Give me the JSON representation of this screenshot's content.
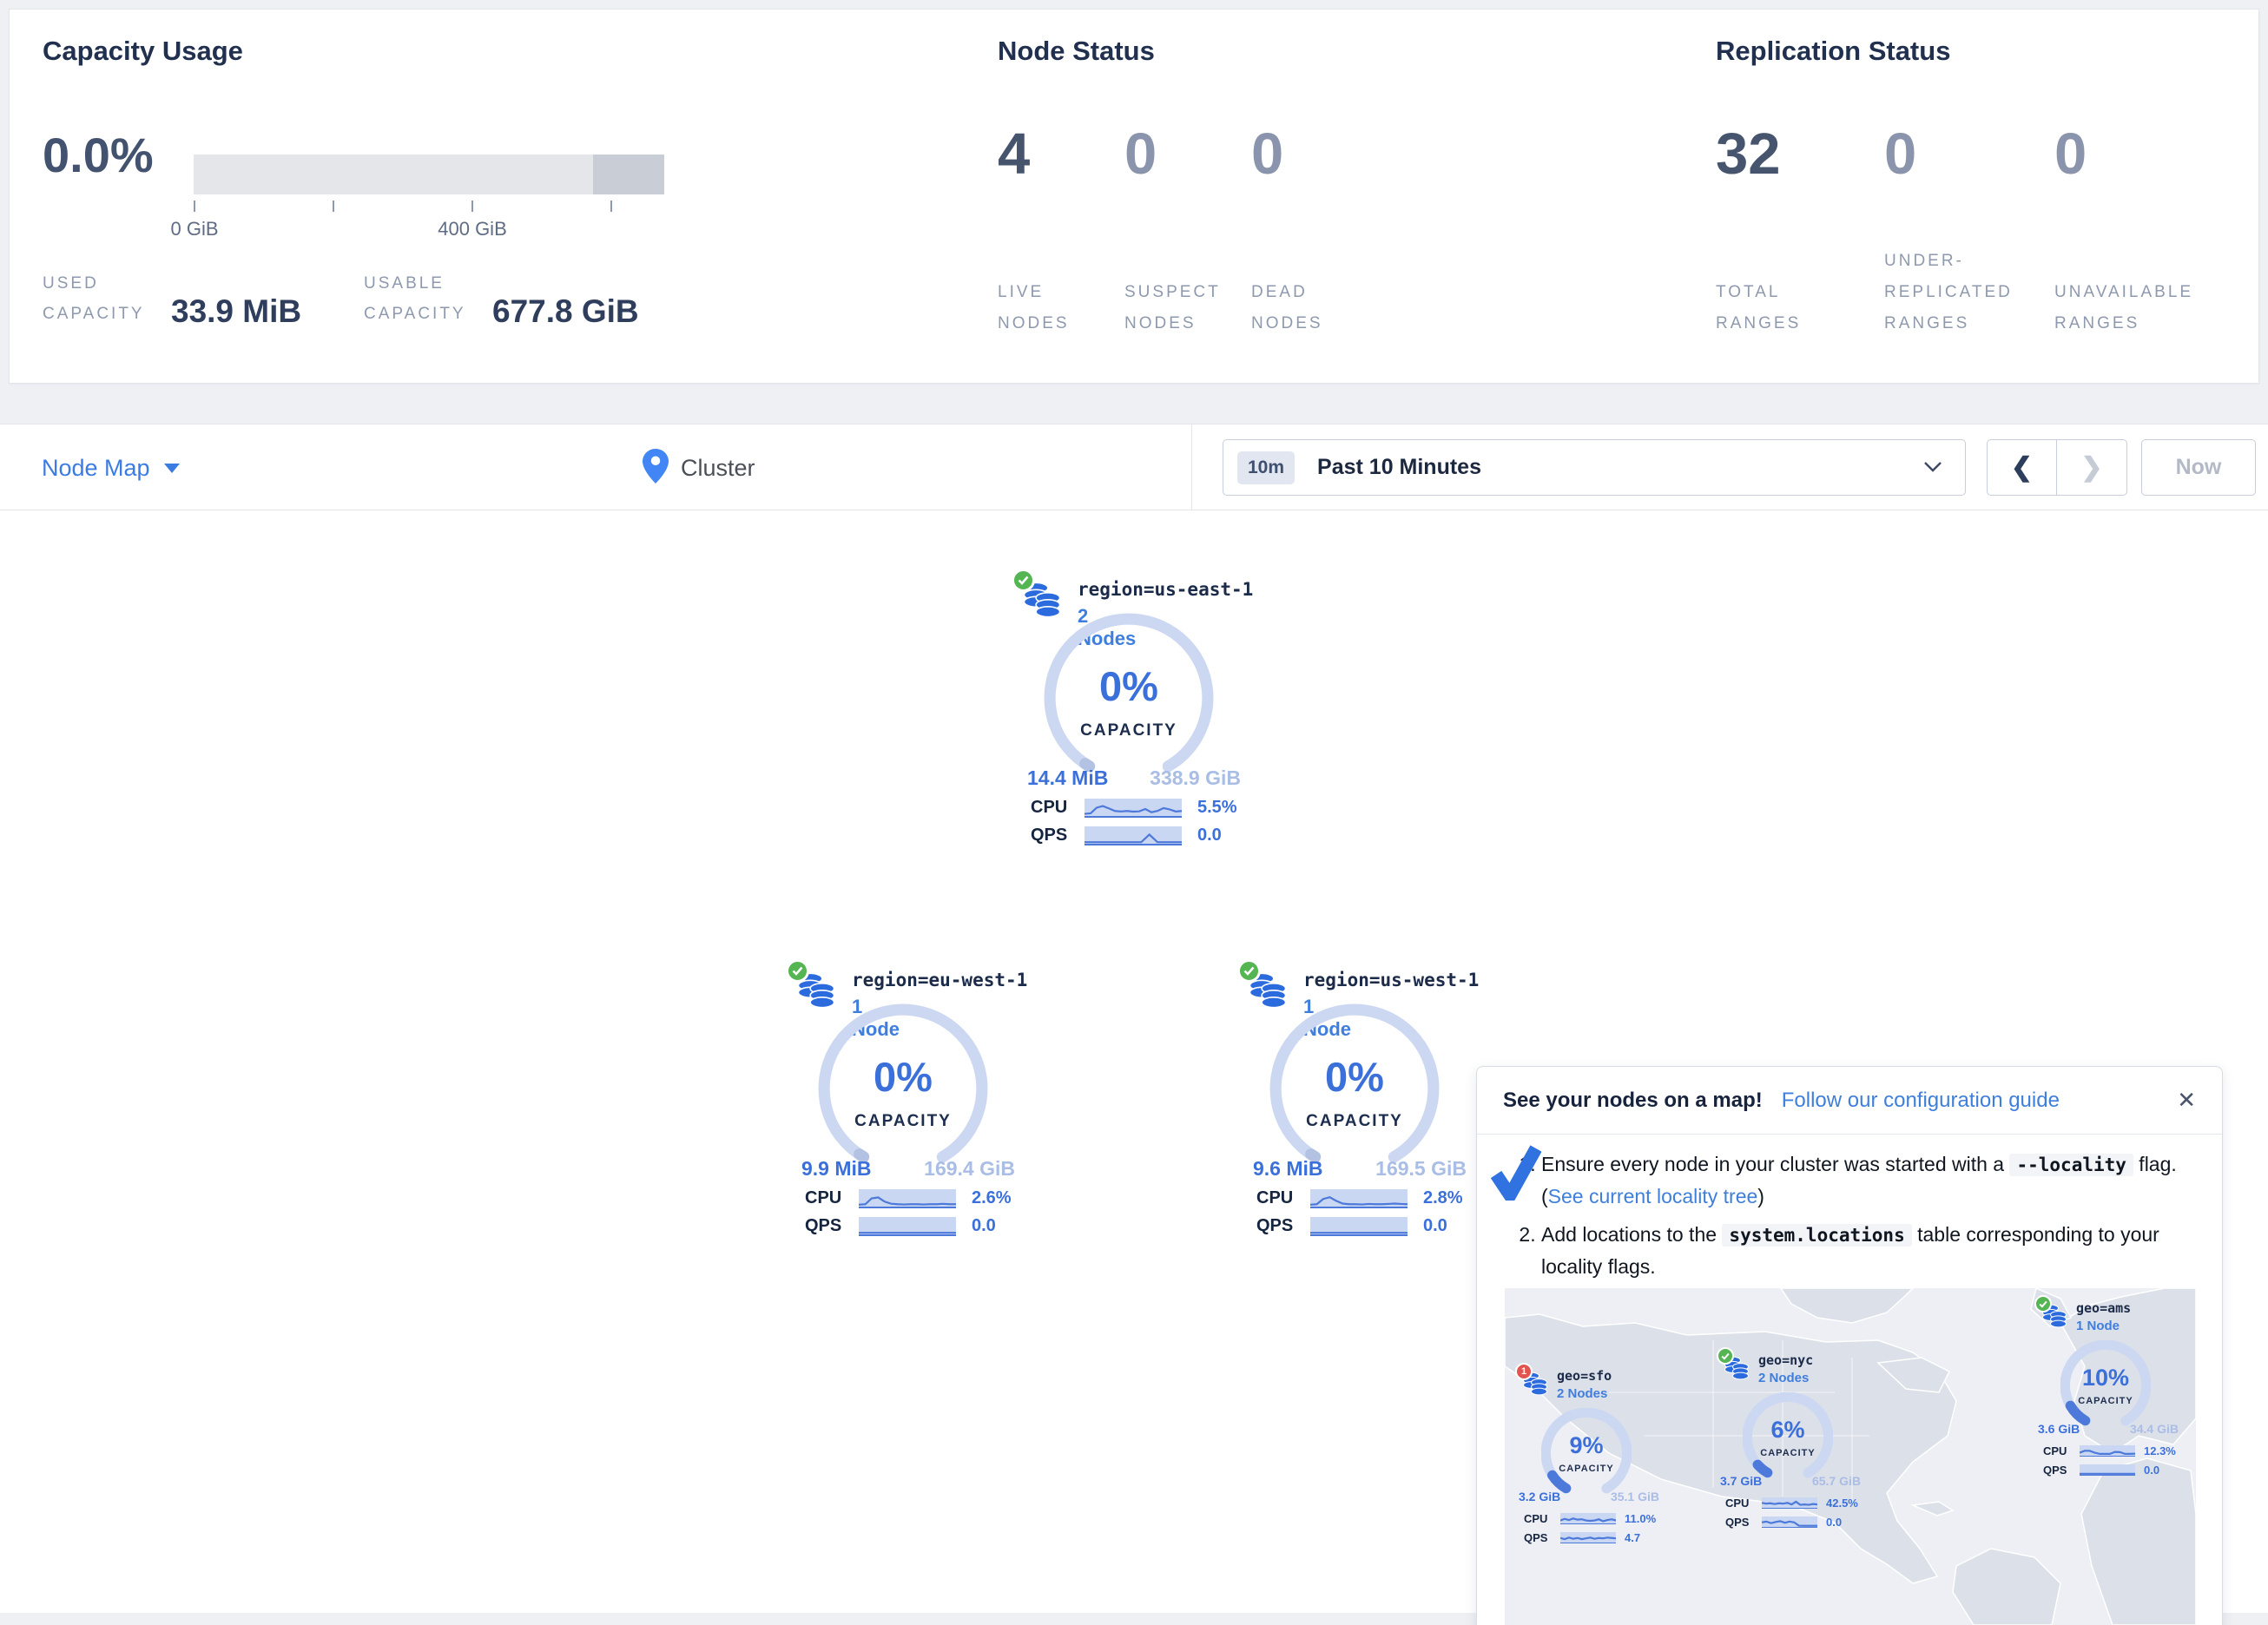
{
  "colors": {
    "accent_blue": "#3b7ce2",
    "node_blue": "#2b6bdd",
    "gauge_track": "#ccd8f2",
    "gauge_progress": "#4d79da",
    "ok_green": "#54b552",
    "warn_red": "#e25450",
    "dark_text": "#20304e",
    "muted_label": "#8e99ae"
  },
  "capacity_usage": {
    "title": "Capacity Usage",
    "percent": "0.0%",
    "tick_labels": [
      "0 GiB",
      "400 GiB"
    ],
    "used_label": "USED CAPACITY",
    "used_value": "33.9 MiB",
    "usable_label": "USABLE CAPACITY",
    "usable_value": "677.8 GiB"
  },
  "node_status": {
    "title": "Node Status",
    "stats": [
      {
        "value": "4",
        "label": "LIVE NODES"
      },
      {
        "value": "0",
        "label": "SUSPECT NODES"
      },
      {
        "value": "0",
        "label": "DEAD NODES"
      }
    ]
  },
  "replication_status": {
    "title": "Replication Status",
    "stats": [
      {
        "value": "32",
        "label": "TOTAL RANGES"
      },
      {
        "value": "0",
        "label": "UNDER-REPLICATED RANGES"
      },
      {
        "value": "0",
        "label": "UNAVAILABLE RANGES"
      }
    ]
  },
  "toolbar": {
    "view_selector": "Node Map",
    "breadcrumb": "Cluster",
    "time_badge": "10m",
    "time_label": "Past 10 Minutes",
    "prev_label": "❮",
    "next_label": "❯",
    "now_label": "Now"
  },
  "nodes": [
    {
      "locality": "region=us-east-1",
      "nodes_label": "2 Nodes",
      "percent": "0%",
      "percent_value": 0,
      "capacity_label": "CAPACITY",
      "used": "14.4 MiB",
      "total": "338.9 GiB",
      "cpu_label": "CPU",
      "cpu_value": "5.5%",
      "qps_label": "QPS",
      "qps_value": "0.0",
      "cpu_spark": [
        0.08,
        0.12,
        0.55,
        0.68,
        0.5,
        0.3,
        0.26,
        0.3,
        0.25,
        0.27,
        0.45,
        0.2,
        0.3,
        0.52,
        0.42,
        0.26,
        0.3
      ],
      "qps_spark": [
        0.04,
        0.04,
        0.04,
        0.04,
        0.04,
        0.04,
        0.04,
        0.04,
        0.62,
        0.04,
        0.04,
        0.04,
        0.04
      ]
    },
    {
      "locality": "region=eu-west-1",
      "nodes_label": "1 Node",
      "percent": "0%",
      "percent_value": 0,
      "capacity_label": "CAPACITY",
      "used": "9.9 MiB",
      "total": "169.4 GiB",
      "cpu_label": "CPU",
      "cpu_value": "2.6%",
      "qps_label": "QPS",
      "qps_value": "0.0",
      "cpu_spark": [
        0.06,
        0.1,
        0.55,
        0.62,
        0.3,
        0.14,
        0.1,
        0.08,
        0.1,
        0.1,
        0.08,
        0.1,
        0.1,
        0.13,
        0.1,
        0.1
      ],
      "qps_spark": [
        0.04,
        0.04,
        0.04,
        0.04,
        0.04,
        0.04,
        0.04,
        0.04,
        0.04,
        0.04,
        0.04,
        0.04
      ]
    },
    {
      "locality": "region=us-west-1",
      "nodes_label": "1 Node",
      "percent": "0%",
      "percent_value": 0,
      "capacity_label": "CAPACITY",
      "used": "9.6 MiB",
      "total": "169.5 GiB",
      "cpu_label": "CPU",
      "cpu_value": "2.8%",
      "qps_label": "QPS",
      "qps_value": "0.0",
      "cpu_spark": [
        0.06,
        0.1,
        0.5,
        0.64,
        0.36,
        0.15,
        0.1,
        0.1,
        0.08,
        0.12,
        0.1,
        0.1,
        0.12,
        0.15,
        0.12,
        0.1
      ],
      "qps_spark": [
        0.04,
        0.04,
        0.04,
        0.04,
        0.04,
        0.04,
        0.04,
        0.04,
        0.04,
        0.04,
        0.04,
        0.04
      ]
    }
  ],
  "popup": {
    "title": "See your nodes on a map!",
    "link": "Follow our configuration guide",
    "close": "✕",
    "step1_pre": "Ensure every node in your cluster was started with a ",
    "step1_code": "--locality",
    "step1_mid": " flag. (",
    "step1_link": "See current locality tree",
    "step1_post": ")",
    "step2_pre": "Add locations to the ",
    "step2_code": "system.locations",
    "step2_post": " table corresponding to your locality flags.",
    "map_nodes": [
      {
        "locality": "geo=sfo",
        "nodes_label": "2 Nodes",
        "badge": "1",
        "percent": "9%",
        "percent_value": 9,
        "capacity_label": "CAPACITY",
        "used": "3.2 GiB",
        "total": "35.1 GiB",
        "cpu_label": "CPU",
        "cpu_value": "11.0%",
        "qps_label": "QPS",
        "qps_value": "4.7",
        "cpu_spark": [
          0.3,
          0.5,
          0.35,
          0.55,
          0.4,
          0.45,
          0.3,
          0.25,
          0.3,
          0.45,
          0.2,
          0.35,
          0.45,
          0.3
        ],
        "qps_spark": [
          0.5,
          0.35,
          0.55,
          0.4,
          0.5,
          0.35,
          0.45,
          0.55,
          0.4,
          0.5,
          0.45,
          0.55,
          0.5,
          0.45
        ]
      },
      {
        "locality": "geo=nyc",
        "nodes_label": "2 Nodes",
        "percent": "6%",
        "percent_value": 6,
        "capacity_label": "CAPACITY",
        "used": "3.7 GiB",
        "total": "65.7 GiB",
        "cpu_label": "CPU",
        "cpu_value": "42.5%",
        "qps_label": "QPS",
        "qps_value": "0.0",
        "cpu_spark": [
          0.55,
          0.45,
          0.5,
          0.4,
          0.5,
          0.45,
          0.55,
          0.35,
          0.7,
          0.3,
          0.35,
          0.3,
          0.4,
          0.35
        ],
        "qps_spark": [
          0.5,
          0.6,
          0.4,
          0.55,
          0.65,
          0.45,
          0.6,
          0.5,
          0.08,
          0.06,
          0.06,
          0.06,
          0.06
        ]
      },
      {
        "locality": "geo=ams",
        "nodes_label": "1 Node",
        "percent": "10%",
        "percent_value": 10,
        "capacity_label": "CAPACITY",
        "used": "3.6 GiB",
        "total": "34.4 GiB",
        "cpu_label": "CPU",
        "cpu_value": "12.3%",
        "qps_label": "QPS",
        "qps_value": "0.0",
        "cpu_spark": [
          0.3,
          0.55,
          0.55,
          0.3,
          0.15,
          0.15,
          0.15,
          0.4,
          0.38,
          0.15,
          0.15,
          0.18
        ],
        "qps_spark": [
          0.05,
          0.05,
          0.05,
          0.05,
          0.05,
          0.05,
          0.05,
          0.05,
          0.05,
          0.05
        ]
      }
    ]
  }
}
